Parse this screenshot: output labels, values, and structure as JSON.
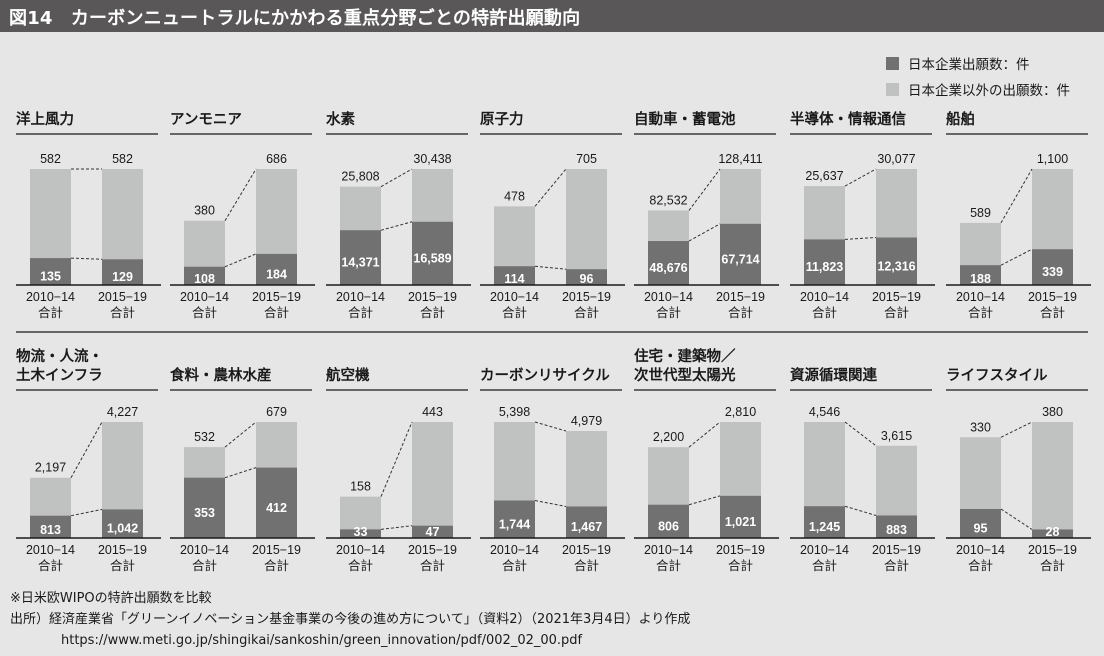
{
  "figure_title": "図14　カーボンニュートラルにかかわる重点分野ごとの特許出願動向",
  "legend": [
    {
      "label": "日本企業出願数：件",
      "color": "#727171"
    },
    {
      "label": "日本企業以外の出願数：件",
      "color": "#c0c1c1"
    }
  ],
  "colors": {
    "japan": "#727171",
    "total": "#c0c1c1",
    "background": "#e6e6e6",
    "titlebar": "#595757"
  },
  "notes": {
    "note": "※日米欧WIPOの特許出願数を比較",
    "source": "出所）経済産業省「グリーンイノベーション基金事業の今後の進め方について」（資料2）（2021年3月4日）より作成",
    "url": "https://www.meti.go.jp/shingikai/sankoshin/green_innovation/pdf/002_02_00.pdf"
  },
  "chart_data": {
    "type": "bar",
    "stacked": true,
    "title": "カーボンニュートラルにかかわる重点分野ごとの特許出願動向",
    "categories": [
      "2010−14\n合計",
      "2015−19\n合計"
    ],
    "category_labels": [
      [
        "2010−14",
        "合計"
      ],
      [
        "2015−19",
        "合計"
      ]
    ],
    "series_names": [
      "日本企業出願数：件",
      "日本企業以外の出願数：件"
    ],
    "legend_position": "top-right",
    "scale": "independent per panel",
    "panels": [
      {
        "name": "洋上風力",
        "title_lines": [
          "洋上風力"
        ],
        "total": [
          582,
          582
        ],
        "japan": [
          135,
          129
        ]
      },
      {
        "name": "アンモニア",
        "title_lines": [
          "アンモニア"
        ],
        "total": [
          380,
          686
        ],
        "japan": [
          108,
          184
        ]
      },
      {
        "name": "水素",
        "title_lines": [
          "水素"
        ],
        "total": [
          25808,
          30438
        ],
        "japan": [
          14371,
          16589
        ]
      },
      {
        "name": "原子力",
        "title_lines": [
          "原子力"
        ],
        "total": [
          478,
          705
        ],
        "japan": [
          114,
          96
        ]
      },
      {
        "name": "自動車・蓄電池",
        "title_lines": [
          "自動車・蓄電池"
        ],
        "total": [
          82532,
          128411
        ],
        "japan": [
          48676,
          67714
        ]
      },
      {
        "name": "半導体・情報通信",
        "title_lines": [
          "半導体・情報通信"
        ],
        "total": [
          25637,
          30077
        ],
        "japan": [
          11823,
          12316
        ]
      },
      {
        "name": "船舶",
        "title_lines": [
          "船舶"
        ],
        "total": [
          589,
          1100
        ],
        "japan": [
          188,
          339
        ]
      },
      {
        "name": "物流・人流・土木インフラ",
        "title_lines": [
          "物流・人流・",
          "土木インフラ"
        ],
        "total": [
          2197,
          4227
        ],
        "japan": [
          813,
          1042
        ]
      },
      {
        "name": "食料・農林水産",
        "title_lines": [
          "食料・農林水産"
        ],
        "total": [
          532,
          679
        ],
        "japan": [
          353,
          412
        ]
      },
      {
        "name": "航空機",
        "title_lines": [
          "航空機"
        ],
        "total": [
          158,
          443
        ],
        "japan": [
          33,
          47
        ]
      },
      {
        "name": "カーボンリサイクル",
        "title_lines": [
          "カーボンリサイクル"
        ],
        "total": [
          5398,
          4979
        ],
        "japan": [
          1744,
          1467
        ]
      },
      {
        "name": "住宅・建築物／次世代型太陽光",
        "title_lines": [
          "住宅・建築物／",
          "次世代型太陽光"
        ],
        "total": [
          2200,
          2810
        ],
        "japan": [
          806,
          1021
        ]
      },
      {
        "name": "資源循環関連",
        "title_lines": [
          "資源循環関連"
        ],
        "total": [
          4546,
          3615
        ],
        "japan": [
          1245,
          883
        ]
      },
      {
        "name": "ライフスタイル",
        "title_lines": [
          "ライフスタイル"
        ],
        "total": [
          330,
          380
        ],
        "japan": [
          95,
          28
        ]
      }
    ]
  }
}
